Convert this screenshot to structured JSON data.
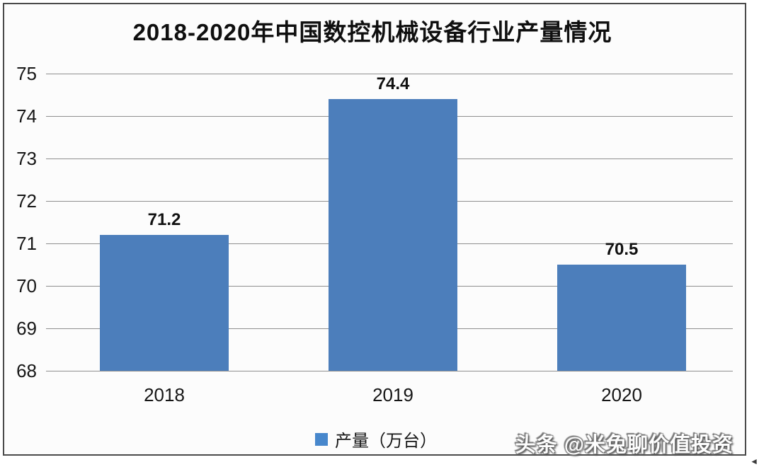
{
  "chart_data": {
    "type": "bar",
    "title": "2018-2020年中国数控机械设备行业产量情况",
    "categories": [
      "2018",
      "2019",
      "2020"
    ],
    "series": [
      {
        "name": "产量（万台）",
        "values": [
          71.2,
          74.4,
          70.5
        ]
      }
    ],
    "data_labels": [
      "71.2",
      "74.4",
      "70.5"
    ],
    "xlabel": "",
    "ylabel": "",
    "ylim": [
      68,
      75
    ],
    "yticks": [
      68,
      69,
      70,
      71,
      72,
      73,
      74,
      75
    ],
    "grid": "horizontal",
    "legend_position": "bottom",
    "colors": {
      "bar": "#4C7EBB",
      "legend_swatch": "#4787CC",
      "gridline": "#8f8f8f",
      "frame_border": "#4a4a4a",
      "title_text": "#0f0f0f"
    }
  },
  "legend": {
    "label": "产量（万台）"
  },
  "watermark": {
    "text": "头条 @米兔聊价值投资"
  },
  "icons": {
    "corner_arrow": "◄"
  }
}
